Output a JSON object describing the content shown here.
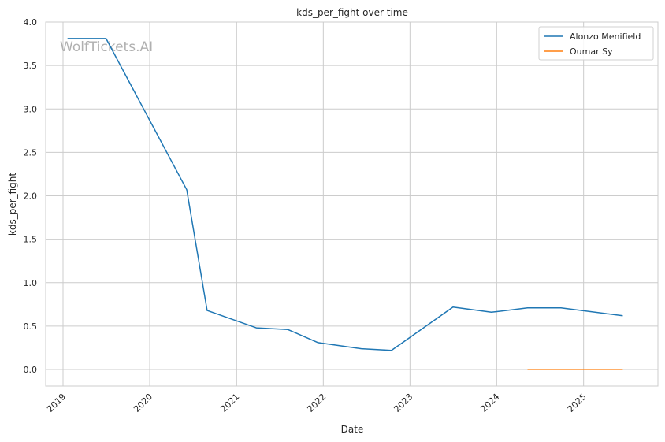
{
  "chart_data": {
    "type": "line",
    "title": "kds_per_fight over time",
    "xlabel": "Date",
    "ylabel": "kds_per_fight",
    "watermark": "WolfTickets.AI",
    "x_axis_type": "date",
    "xlim": [
      "2018-10-20",
      "2025-11-10"
    ],
    "ylim": [
      -0.19,
      4.0
    ],
    "xticks": [
      {
        "date": "2019-01-01",
        "label": "2019"
      },
      {
        "date": "2020-01-01",
        "label": "2020"
      },
      {
        "date": "2021-01-01",
        "label": "2021"
      },
      {
        "date": "2022-01-01",
        "label": "2022"
      },
      {
        "date": "2023-01-01",
        "label": "2023"
      },
      {
        "date": "2024-01-01",
        "label": "2024"
      },
      {
        "date": "2025-01-01",
        "label": "2025"
      }
    ],
    "yticks": [
      {
        "value": 0.0,
        "label": "0.0"
      },
      {
        "value": 0.5,
        "label": "0.5"
      },
      {
        "value": 1.0,
        "label": "1.0"
      },
      {
        "value": 1.5,
        "label": "1.5"
      },
      {
        "value": 2.0,
        "label": "2.0"
      },
      {
        "value": 2.5,
        "label": "2.5"
      },
      {
        "value": 3.0,
        "label": "3.0"
      },
      {
        "value": 3.5,
        "label": "3.5"
      },
      {
        "value": 4.0,
        "label": "4.0"
      }
    ],
    "grid": true,
    "legend_position": "top-right",
    "series": [
      {
        "name": "Alonzo Menifield",
        "color": "#1f77b4",
        "points": [
          {
            "x": "2019-01-20",
            "y": 3.81
          },
          {
            "x": "2019-07-01",
            "y": 3.81
          },
          {
            "x": "2020-06-05",
            "y": 2.07
          },
          {
            "x": "2020-08-30",
            "y": 0.68
          },
          {
            "x": "2021-03-25",
            "y": 0.48
          },
          {
            "x": "2021-08-05",
            "y": 0.46
          },
          {
            "x": "2021-12-10",
            "y": 0.31
          },
          {
            "x": "2022-06-10",
            "y": 0.24
          },
          {
            "x": "2022-10-15",
            "y": 0.22
          },
          {
            "x": "2023-07-01",
            "y": 0.72
          },
          {
            "x": "2023-12-10",
            "y": 0.66
          },
          {
            "x": "2024-05-10",
            "y": 0.71
          },
          {
            "x": "2024-09-28",
            "y": 0.71
          },
          {
            "x": "2025-06-15",
            "y": 0.62
          }
        ]
      },
      {
        "name": "Oumar Sy",
        "color": "#ff7f0e",
        "points": [
          {
            "x": "2024-05-10",
            "y": 0.0
          },
          {
            "x": "2025-06-15",
            "y": 0.0
          }
        ]
      }
    ]
  }
}
